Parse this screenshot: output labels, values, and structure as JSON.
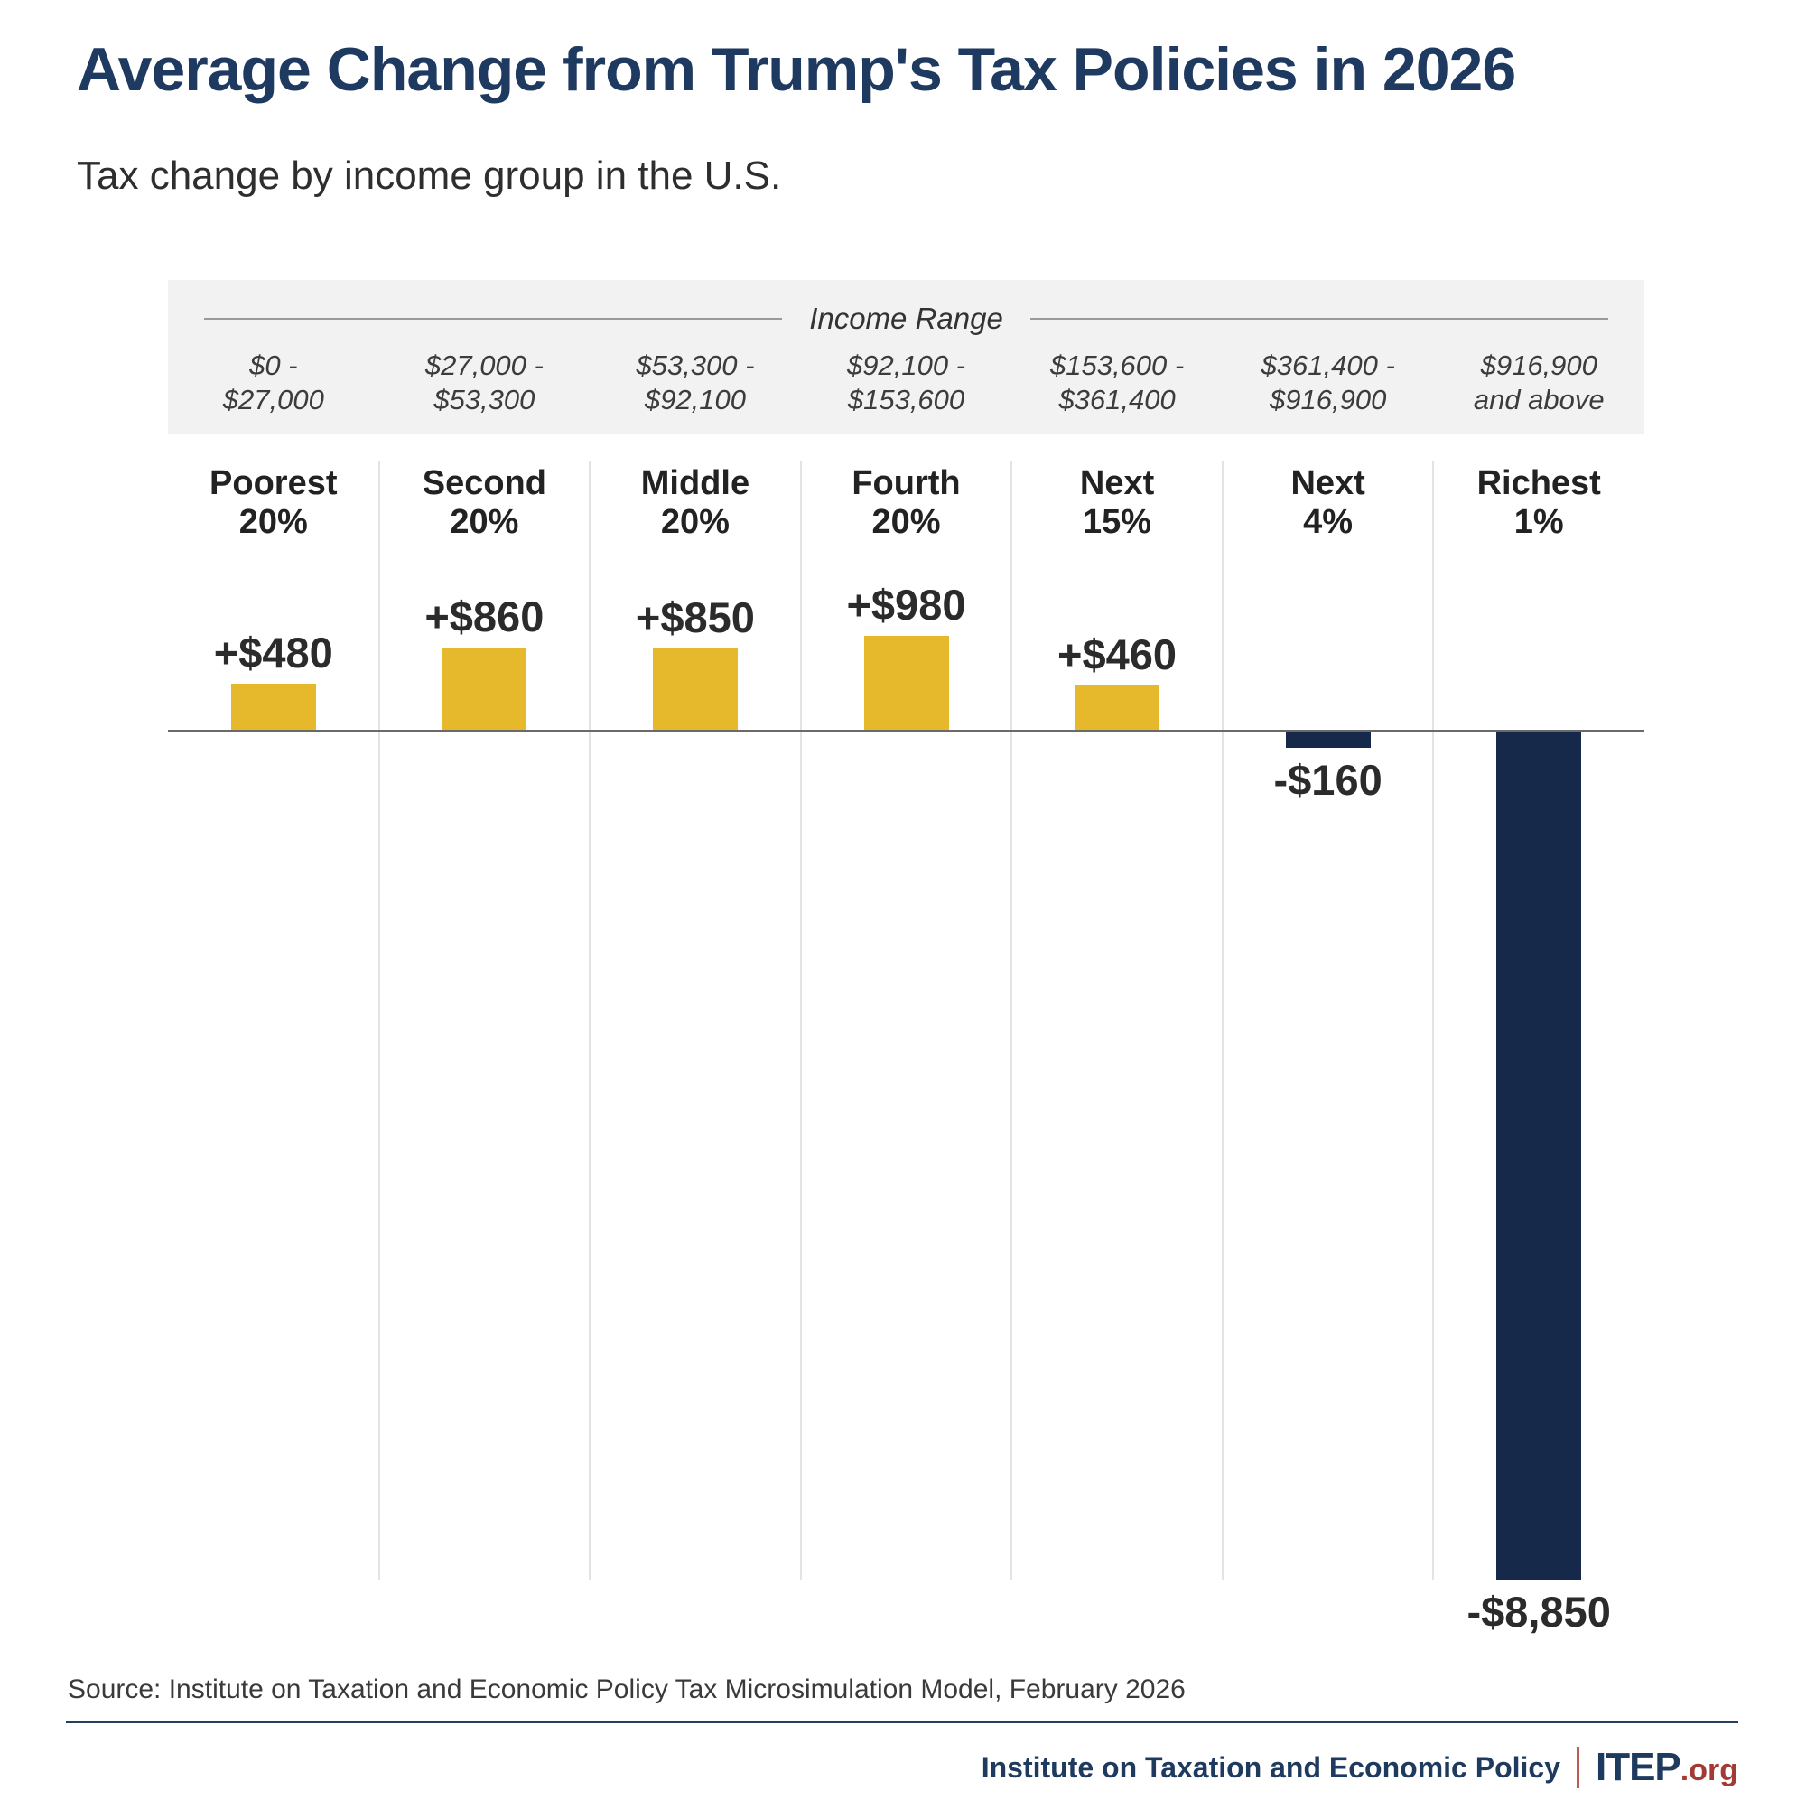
{
  "chart_data": {
    "type": "bar",
    "title": "Average Change from Trump's Tax Policies in 2026",
    "subtitle": "Tax change by income group in the U.S.",
    "range_header": "Income Range",
    "categories": [
      "Poorest\n20%",
      "Second\n20%",
      "Middle\n20%",
      "Fourth\n20%",
      "Next\n15%",
      "Next\n4%",
      "Richest\n1%"
    ],
    "income_ranges": [
      "$0 -\n$27,000",
      "$27,000 -\n$53,300",
      "$53,300 -\n$92,100",
      "$92,100 -\n$153,600",
      "$153,600 -\n$361,400",
      "$361,400 -\n$916,900",
      "$916,900\nand above"
    ],
    "values": [
      480,
      860,
      850,
      980,
      460,
      -160,
      -8850
    ],
    "value_labels": [
      "+$480",
      "+$860",
      "+$850",
      "+$980",
      "+$460",
      "-$160",
      "-$8,850"
    ],
    "ylim": [
      -8850,
      980
    ],
    "legend": "none",
    "grid": "vertical column dividers only",
    "colors": {
      "positive_bar": "#e6b82c",
      "negative_bar": "#16294b"
    }
  },
  "footer": {
    "source": "Source: Institute on Taxation and Economic Policy Tax Microsimulation Model, February 2026",
    "org_name": "Institute on Taxation and Economic Policy",
    "logo_text": "ITEP",
    "logo_suffix": ".org"
  },
  "colors": {
    "title_navy": "#1f3a60",
    "band_background": "#f2f2f2",
    "zero_line": "#6a6a6a",
    "logo_red": "#a23b35"
  }
}
